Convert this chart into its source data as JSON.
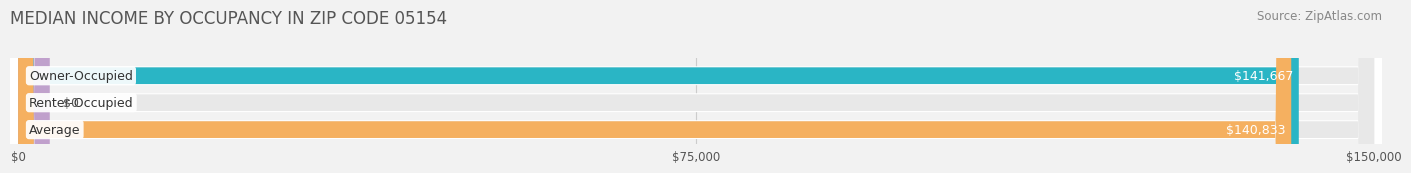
{
  "title": "MEDIAN INCOME BY OCCUPANCY IN ZIP CODE 05154",
  "source": "Source: ZipAtlas.com",
  "categories": [
    "Owner-Occupied",
    "Renter-Occupied",
    "Average"
  ],
  "values": [
    141667,
    0,
    140833
  ],
  "bar_colors": [
    "#2ab5c5",
    "#c0a0cc",
    "#f5b060"
  ],
  "value_labels": [
    "$141,667",
    "$0",
    "$140,833"
  ],
  "xlim": [
    0,
    150000
  ],
  "xticks": [
    0,
    75000,
    150000
  ],
  "xtick_labels": [
    "$0",
    "$75,000",
    "$150,000"
  ],
  "title_fontsize": 12,
  "source_fontsize": 8.5,
  "label_fontsize": 9,
  "value_fontsize": 9,
  "background_color": "#f2f2f2",
  "bar_bg_color": "#e8e8e8",
  "bar_height": 0.62,
  "renter_small_val": 3500
}
